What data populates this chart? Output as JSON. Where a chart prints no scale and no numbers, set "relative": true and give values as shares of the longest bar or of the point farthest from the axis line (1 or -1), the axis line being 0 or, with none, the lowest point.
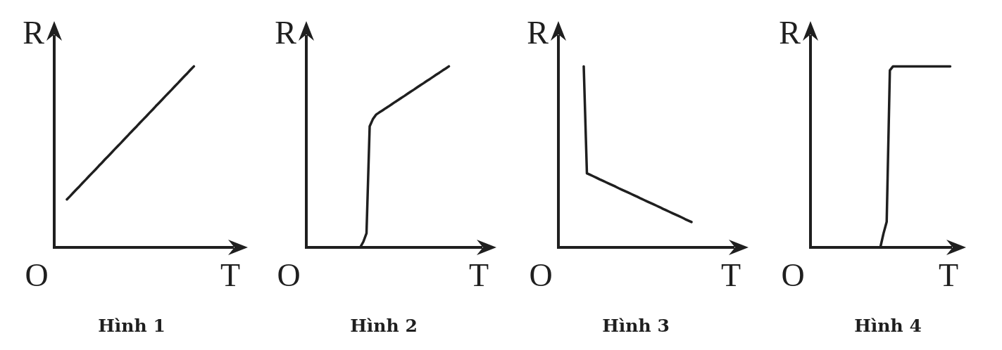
{
  "chart_data": [
    {
      "type": "line",
      "relative": true,
      "title": "Hình 1",
      "xlabel": "T",
      "ylabel": "R",
      "annotations": [
        "O"
      ],
      "marker": "none",
      "legend": false,
      "tick_labels": false,
      "color": "#1f1f1f",
      "categories": [
        null,
        null,
        null,
        null,
        null,
        null,
        null,
        null,
        null,
        null,
        null,
        null,
        null,
        null,
        null,
        null,
        null,
        null,
        null,
        null,
        null,
        null,
        null,
        null,
        null,
        null,
        null,
        null,
        null,
        null,
        null,
        null,
        null,
        null,
        null,
        null,
        null,
        null,
        null,
        null,
        null,
        null,
        null,
        null,
        null,
        null,
        null,
        null,
        null,
        null,
        null,
        null,
        null,
        null,
        null,
        null,
        null,
        null,
        null,
        null,
        null,
        null
      ],
      "values": [
        null,
        null,
        null,
        null,
        0.265,
        0.283,
        0.302,
        0.32,
        0.338,
        0.357,
        0.375,
        0.394,
        0.412,
        0.43,
        0.449,
        0.467,
        0.486,
        0.504,
        0.522,
        0.541,
        0.559,
        0.577,
        0.596,
        0.614,
        0.633,
        0.651,
        0.669,
        0.688,
        0.706,
        0.724,
        0.743,
        0.761,
        0.78,
        0.798,
        0.816,
        0.835,
        0.853,
        0.871,
        0.89,
        0.908,
        0.927,
        0.945,
        0.963,
        0.982,
        1.0,
        null,
        null,
        null,
        null,
        null,
        null,
        null,
        null,
        null,
        null,
        null,
        null,
        null,
        null,
        null,
        null,
        null
      ]
    },
    {
      "type": "line",
      "relative": true,
      "title": "Hình 2",
      "xlabel": "T",
      "ylabel": "R",
      "annotations": [
        "O"
      ],
      "marker": "none",
      "legend": false,
      "tick_labels": false,
      "color": "#1f1f1f",
      "categories": [
        null,
        null,
        null,
        null,
        null,
        null,
        null,
        null,
        null,
        null,
        null,
        null,
        null,
        null,
        null,
        null,
        null,
        null,
        null,
        null,
        null,
        null,
        null,
        null,
        null,
        null,
        null,
        null,
        null,
        null,
        null,
        null,
        null,
        null,
        null,
        null,
        null,
        null,
        null,
        null,
        null,
        null,
        null,
        null,
        null,
        null,
        null,
        null,
        null,
        null,
        null,
        null,
        null,
        null,
        null,
        null,
        null,
        null,
        null,
        null,
        null
      ],
      "values": [
        null,
        null,
        null,
        null,
        null,
        null,
        null,
        null,
        null,
        null,
        null,
        null,
        null,
        null,
        null,
        null,
        null,
        0,
        0.031,
        0.078,
        0.669,
        0.708,
        0.733,
        0.745,
        0.756,
        0.768,
        0.779,
        0.791,
        0.803,
        0.814,
        0.826,
        0.837,
        0.849,
        0.861,
        0.872,
        0.884,
        0.896,
        0.907,
        0.919,
        0.93,
        0.942,
        0.954,
        0.965,
        0.977,
        0.988,
        1.0,
        null,
        null,
        null,
        null,
        null,
        null,
        null,
        null,
        null,
        null,
        null,
        null,
        null,
        null,
        null
      ]
    },
    {
      "type": "line",
      "relative": true,
      "title": "Hình 3",
      "xlabel": "T",
      "ylabel": "R",
      "annotations": [
        "O"
      ],
      "marker": "none",
      "legend": false,
      "tick_labels": false,
      "color": "#1f1f1f",
      "categories": [
        null,
        null,
        null,
        null,
        null,
        null,
        null,
        null,
        null,
        null,
        null,
        null,
        null,
        null,
        null,
        null,
        null,
        null,
        null,
        null,
        null,
        null,
        null,
        null,
        null,
        null,
        null,
        null,
        null,
        null,
        null,
        null,
        null,
        null,
        null,
        null,
        null,
        null,
        null,
        null,
        null,
        null,
        null,
        null,
        null,
        null,
        null,
        null,
        null,
        null,
        null,
        null,
        null,
        null,
        null,
        null,
        null,
        null,
        null,
        null,
        null
      ],
      "values": [
        null,
        null,
        null,
        null,
        null,
        null,
        null,
        null,
        1.0,
        0.409,
        0.401,
        0.393,
        0.385,
        0.376,
        0.368,
        0.36,
        0.352,
        0.344,
        0.336,
        0.327,
        0.319,
        0.311,
        0.303,
        0.295,
        0.287,
        0.279,
        0.27,
        0.262,
        0.254,
        0.246,
        0.238,
        0.23,
        0.222,
        0.213,
        0.205,
        0.197,
        0.189,
        0.181,
        0.173,
        0.165,
        0.156,
        0.148,
        0.14,
        null,
        null,
        null,
        null,
        null,
        null,
        null,
        null,
        null,
        null,
        null,
        null,
        null,
        null,
        null,
        null,
        null,
        null
      ]
    },
    {
      "type": "line",
      "relative": true,
      "title": "Hình 4",
      "xlabel": "T",
      "ylabel": "R",
      "annotations": [
        "O"
      ],
      "marker": "none",
      "legend": false,
      "tick_labels": false,
      "color": "#1f1f1f",
      "categories": [
        null,
        null,
        null,
        null,
        null,
        null,
        null,
        null,
        null,
        null,
        null,
        null,
        null,
        null,
        null,
        null,
        null,
        null,
        null,
        null,
        null,
        null,
        null,
        null,
        null,
        null,
        null,
        null,
        null,
        null,
        null,
        null,
        null,
        null,
        null,
        null,
        null,
        null,
        null,
        null,
        null,
        null,
        null,
        null,
        null,
        null,
        null,
        null,
        null,
        null
      ],
      "values": [
        null,
        null,
        null,
        null,
        null,
        null,
        null,
        null,
        null,
        null,
        null,
        null,
        null,
        null,
        null,
        null,
        null,
        null,
        null,
        null,
        null,
        null,
        0,
        0.077,
        0.142,
        0.978,
        1.0,
        1.0,
        1.0,
        1.0,
        1.0,
        1.0,
        1.0,
        1.0,
        1.0,
        1.0,
        1.0,
        1.0,
        1.0,
        1.0,
        1.0,
        1.0,
        1.0,
        1.0,
        1.0,
        null,
        null,
        null,
        null,
        null
      ]
    }
  ]
}
